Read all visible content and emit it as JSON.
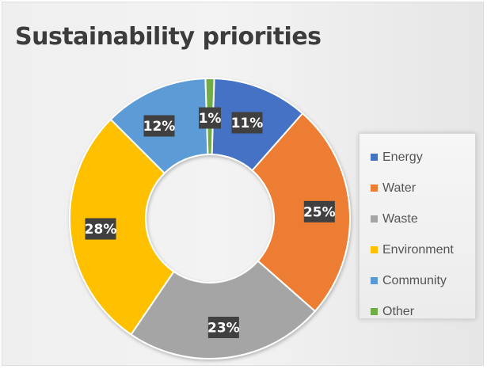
{
  "chart_data": {
    "type": "pie",
    "title": "Sustainability priorities",
    "categories": [
      "Energy",
      "Water",
      "Waste",
      "Environment",
      "Community",
      "Other"
    ],
    "values": [
      11,
      25,
      23,
      28,
      12,
      1
    ],
    "labels": [
      "11%",
      "25%",
      "23%",
      "28%",
      "12%",
      "1%"
    ],
    "colors": [
      "#4472C4",
      "#ED7D31",
      "#A5A5A5",
      "#FFC000",
      "#5B9BD5",
      "#70AD47"
    ],
    "legend": {
      "position": "right",
      "entries": [
        "Energy",
        "Water",
        "Waste",
        "Environment",
        "Community",
        "Other"
      ]
    },
    "style": "donut"
  }
}
